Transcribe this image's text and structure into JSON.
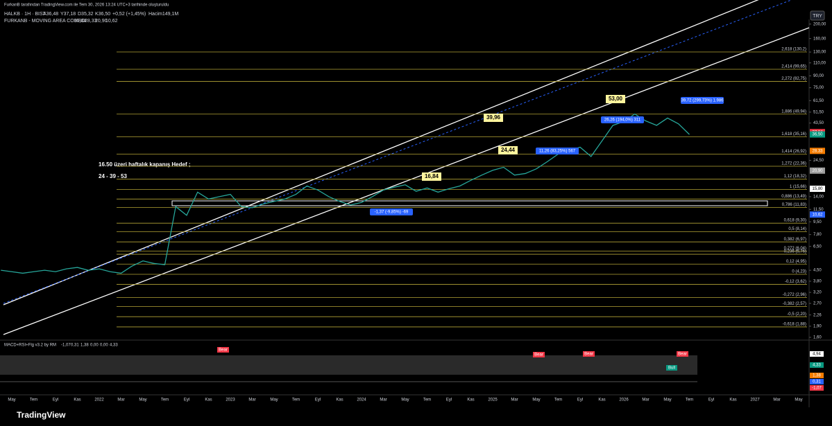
{
  "header": {
    "credit": "FurkanB tarafından TradingView.com ile Tem 30, 2026 13:24 UTC+3 tarihinde oluşturuldu",
    "symbol": "HALKB · 1H · BIST",
    "ohlc": [
      "A36,48",
      "Y37,18",
      "D35,32",
      "K36,50",
      "+0,52 (+1,45%)",
      "Hacim149,1M"
    ],
    "indicator": "FURKANB - MOVING AREA COMBO",
    "indicator_values": [
      "37,84",
      "28,33",
      "20,90",
      "10,62"
    ],
    "currency": "TRY"
  },
  "chart_data": {
    "type": "line",
    "color": "#26a69a",
    "log_scale": true,
    "ylim": [
      1.55,
      215
    ],
    "yticks": [
      {
        "value": 200,
        "label": "200,00"
      },
      {
        "value": 160,
        "label": "160,00"
      },
      {
        "value": 130,
        "label": "130,00"
      },
      {
        "value": 110,
        "label": "110,00"
      },
      {
        "value": 90,
        "label": "90,00"
      },
      {
        "value": 75,
        "label": "75,00"
      },
      {
        "value": 61.5,
        "label": "61,50"
      },
      {
        "value": 51.5,
        "label": "51,50"
      },
      {
        "value": 43.5,
        "label": "43,50"
      },
      {
        "value": 24.5,
        "label": "24,50"
      },
      {
        "value": 14,
        "label": "14,00"
      },
      {
        "value": 11.5,
        "label": "11,50"
      },
      {
        "value": 9.5,
        "label": "9,50"
      },
      {
        "value": 7.8,
        "label": "7,80"
      },
      {
        "value": 6.5,
        "label": "6,50"
      },
      {
        "value": 4.5,
        "label": "4,50"
      },
      {
        "value": 3.8,
        "label": "3,80"
      },
      {
        "value": 3.2,
        "label": "3,20"
      },
      {
        "value": 2.7,
        "label": "2,70"
      },
      {
        "value": 2.26,
        "label": "2,26"
      },
      {
        "value": 1.9,
        "label": "1,90"
      },
      {
        "value": 1.6,
        "label": "1,60"
      }
    ],
    "values": [
      4.5,
      4.4,
      4.3,
      4.4,
      4.5,
      4.4,
      4.6,
      4.7,
      4.5,
      4.6,
      4.4,
      4.3,
      4.8,
      5.2,
      5.0,
      4.9,
      12.0,
      10.5,
      15.0,
      13.5,
      14.0,
      14.5,
      12.0,
      11.8,
      12.5,
      13.0,
      13.5,
      14.5,
      16.5,
      15.5,
      14.0,
      13.0,
      12.3,
      12.8,
      14.0,
      15.5,
      16.2,
      16.8,
      15.2,
      16.0,
      15.0,
      15.8,
      16.5,
      18.0,
      19.5,
      21.0,
      22.0,
      19.5,
      20.0,
      21.5,
      24.0,
      27.0,
      28.5,
      30.0,
      26.0,
      33.0,
      42.0,
      44.5,
      50.0,
      45.0,
      42.0,
      47.0,
      43.0,
      36.5
    ],
    "time_labels": [
      "May",
      "Tem",
      "Eyl",
      "Kas",
      "2022",
      "Mar",
      "May",
      "Tem",
      "Eyl",
      "Kas",
      "2023",
      "Mar",
      "May",
      "Tem",
      "Eyl",
      "Kas",
      "2024",
      "Mar",
      "May",
      "Tem",
      "Eyl",
      "Kas",
      "2025",
      "Mar",
      "May",
      "Tem",
      "Eyl",
      "Kas",
      "2026",
      "Mar",
      "May",
      "Tem",
      "Eyl",
      "Kas",
      "2027",
      "Mar",
      "May"
    ],
    "fib_color": "#b5a536",
    "fib_levels": [
      {
        "value": 130.2,
        "label": "2,618 (130,2)"
      },
      {
        "value": 99.65,
        "label": "2,414 (99,65)"
      },
      {
        "value": 82.75,
        "label": "2,272 (82,75)"
      },
      {
        "value": 49.94,
        "label": "1,886 (49,94)"
      },
      {
        "value": 35.16,
        "label": "1,618 (35,16)"
      },
      {
        "value": 26.92,
        "label": "1,414 (26,92)"
      },
      {
        "value": 22.36,
        "label": "1,272 (22,36)"
      },
      {
        "value": 18.32,
        "label": "1,12 (18,32)"
      },
      {
        "value": 15.66,
        "label": "1 (15,66)"
      },
      {
        "value": 13.49,
        "label": "0,886 (13,49)"
      },
      {
        "value": 11.83,
        "label": "0,786 (11,83)"
      },
      {
        "value": 9.3,
        "label": "0,618 (9,30)"
      },
      {
        "value": 8.14,
        "label": "0,5 (8,14)"
      },
      {
        "value": 6.97,
        "label": "0,382 (6,97)"
      },
      {
        "value": 6.04,
        "label": "0,272 (6,04)"
      },
      {
        "value": 5.76,
        "label": "0,236 (5,76)"
      },
      {
        "value": 4.95,
        "label": "0,12 (4,95)"
      },
      {
        "value": 4.23,
        "label": "0 (4,23)"
      },
      {
        "value": 3.62,
        "label": "-0,12 (3,62)"
      },
      {
        "value": 2.96,
        "label": "-0,272 (2,96)"
      },
      {
        "value": 2.57,
        "label": "-0,382 (2,57)"
      },
      {
        "value": 2.2,
        "label": "-0,5 (2,20)"
      },
      {
        "value": 1.88,
        "label": "-0,618 (1,88)"
      }
    ],
    "price_labels": [
      {
        "value": 37.84,
        "label": "37,84",
        "color": "#f23645"
      },
      {
        "value": 36.5,
        "label": "36,50",
        "color": "#089981"
      },
      {
        "value": 28.33,
        "label": "28,33",
        "color": "#f57c00"
      },
      {
        "value": 20.9,
        "label": "20,90",
        "color": "#9e9e9e"
      },
      {
        "value": 15.8,
        "label": "15,80",
        "color": "#ffffff"
      },
      {
        "value": 10.62,
        "label": "10,62",
        "color": "#2962ff"
      }
    ],
    "annotations": [
      "16.50 üzeri haftalık kapanış Hedef ;",
      "24 - 39 - 53"
    ],
    "callouts": [
      "39,96",
      "24,44",
      "16,84",
      "53,00"
    ],
    "measures": [
      "11,26 (83,25%) 567",
      "26,26 (194,0%) 311",
      "39,72 (299,73%) 1.986",
      "-1,37 (-9,85%) -69"
    ]
  },
  "indicator_pane": {
    "title": "MACD+RSI+Flg v3.2 by RM",
    "values": [
      "-1,07",
      "0,31",
      "1,38",
      "0,00",
      "0,00",
      "4,33"
    ],
    "axis": [
      "4,94",
      "4,33",
      "1,38",
      "0,31",
      "-1,07"
    ],
    "bear": "Bear",
    "bull": "Bull"
  },
  "footer": "TradingView"
}
